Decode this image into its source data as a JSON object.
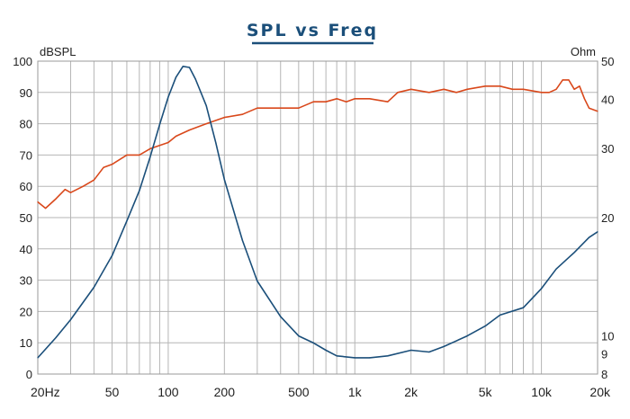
{
  "chart_data": {
    "type": "line",
    "title": "SPL vs Freq",
    "y_left_label": "dBSPL",
    "y_right_label": "Ohm",
    "x_scale": "log",
    "xlim": [
      20,
      20000
    ],
    "ylim_left": [
      0,
      100
    ],
    "ylim_right": [
      8,
      50
    ],
    "y_right_scale": "log",
    "x_ticks": [
      {
        "value": 20,
        "label": "20Hz"
      },
      {
        "value": 50,
        "label": "50"
      },
      {
        "value": 100,
        "label": "100"
      },
      {
        "value": 200,
        "label": "200"
      },
      {
        "value": 500,
        "label": "500"
      },
      {
        "value": 1000,
        "label": "1k"
      },
      {
        "value": 2000,
        "label": "2k"
      },
      {
        "value": 5000,
        "label": "5k"
      },
      {
        "value": 10000,
        "label": "10k"
      },
      {
        "value": 20000,
        "label": "20k"
      }
    ],
    "y_left_ticks": [
      "0",
      "10",
      "20",
      "30",
      "40",
      "50",
      "60",
      "70",
      "80",
      "90",
      "100"
    ],
    "y_right_ticks": [
      {
        "value": 8,
        "label": "8"
      },
      {
        "value": 9,
        "label": "9"
      },
      {
        "value": 10,
        "label": "10"
      },
      {
        "value": 20,
        "label": "20"
      },
      {
        "value": 30,
        "label": "30"
      },
      {
        "value": 40,
        "label": "40"
      },
      {
        "value": 50,
        "label": "50"
      }
    ],
    "grid": true,
    "colors": {
      "title": "#1b4f7a",
      "title_underline": "#1b4f7a",
      "spl": "#d9481b",
      "impedance": "#1b4f7a",
      "grid": "#b5b5b5",
      "x_tick_labels": "#c0391b"
    },
    "series": [
      {
        "key": "spl",
        "axis": "left",
        "points": [
          [
            20,
            55
          ],
          [
            22,
            53
          ],
          [
            25,
            56
          ],
          [
            28,
            59
          ],
          [
            30,
            58
          ],
          [
            35,
            60
          ],
          [
            40,
            62
          ],
          [
            45,
            66
          ],
          [
            50,
            67
          ],
          [
            60,
            70
          ],
          [
            70,
            70
          ],
          [
            80,
            72
          ],
          [
            100,
            74
          ],
          [
            110,
            76
          ],
          [
            130,
            78
          ],
          [
            160,
            80
          ],
          [
            200,
            82
          ],
          [
            250,
            83
          ],
          [
            300,
            85
          ],
          [
            400,
            85
          ],
          [
            500,
            85
          ],
          [
            600,
            87
          ],
          [
            700,
            87
          ],
          [
            800,
            88
          ],
          [
            900,
            87
          ],
          [
            1000,
            88
          ],
          [
            1200,
            88
          ],
          [
            1500,
            87
          ],
          [
            1700,
            90
          ],
          [
            2000,
            91
          ],
          [
            2500,
            90
          ],
          [
            3000,
            91
          ],
          [
            3500,
            90
          ],
          [
            4000,
            91
          ],
          [
            5000,
            92
          ],
          [
            6000,
            92
          ],
          [
            7000,
            91
          ],
          [
            8000,
            91
          ],
          [
            10000,
            90
          ],
          [
            11000,
            90
          ],
          [
            12000,
            91
          ],
          [
            13000,
            94
          ],
          [
            14000,
            94
          ],
          [
            15000,
            91
          ],
          [
            16000,
            92
          ],
          [
            17000,
            88
          ],
          [
            18000,
            85
          ],
          [
            20000,
            84
          ]
        ]
      },
      {
        "key": "impedance",
        "axis": "right",
        "points": [
          [
            20,
            8.8
          ],
          [
            25,
            9.9
          ],
          [
            30,
            11.0
          ],
          [
            40,
            13.3
          ],
          [
            50,
            16.0
          ],
          [
            60,
            19.6
          ],
          [
            70,
            23.4
          ],
          [
            80,
            28.5
          ],
          [
            90,
            34.5
          ],
          [
            100,
            40.5
          ],
          [
            110,
            45.5
          ],
          [
            120,
            48.5
          ],
          [
            130,
            48.2
          ],
          [
            140,
            45.0
          ],
          [
            160,
            38.5
          ],
          [
            180,
            31.0
          ],
          [
            200,
            25.0
          ],
          [
            250,
            17.5
          ],
          [
            300,
            13.8
          ],
          [
            400,
            11.2
          ],
          [
            500,
            10.0
          ],
          [
            600,
            9.6
          ],
          [
            700,
            9.2
          ],
          [
            800,
            8.9
          ],
          [
            1000,
            8.8
          ],
          [
            1200,
            8.8
          ],
          [
            1500,
            8.9
          ],
          [
            2000,
            9.2
          ],
          [
            2500,
            9.1
          ],
          [
            3000,
            9.4
          ],
          [
            4000,
            10.0
          ],
          [
            5000,
            10.6
          ],
          [
            6000,
            11.3
          ],
          [
            8000,
            11.8
          ],
          [
            10000,
            13.2
          ],
          [
            12000,
            14.8
          ],
          [
            15000,
            16.3
          ],
          [
            18000,
            17.8
          ],
          [
            20000,
            18.4
          ]
        ]
      }
    ]
  }
}
